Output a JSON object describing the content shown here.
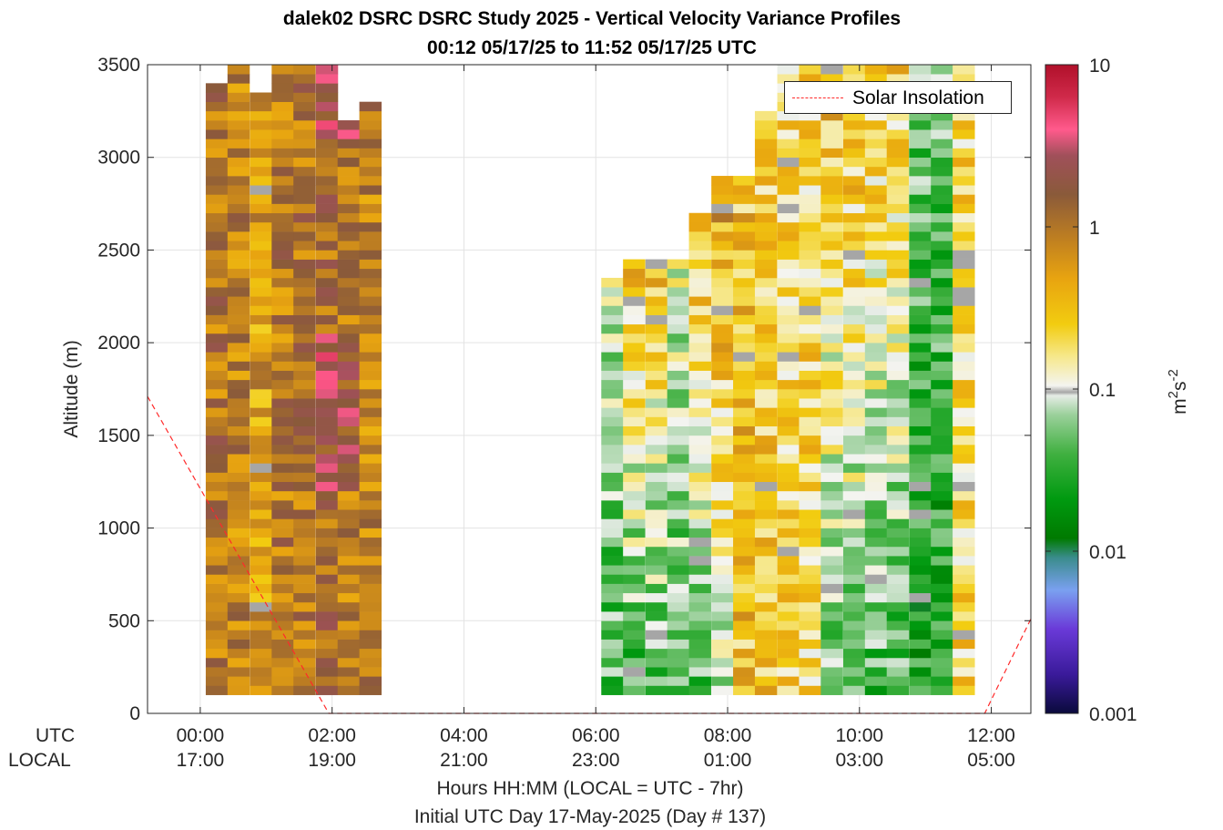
{
  "title_line1": "dalek02 DSRC DSRC Study 2025 - Vertical Velocity Variance Profiles",
  "title_line2": "00:12 05/17/25 to 11:52 05/17/25  UTC",
  "legend_label": "Solar Insolation",
  "bottom_row_labels": {
    "utc": "UTC",
    "local": "LOCAL"
  },
  "x_ticks_utc": [
    "00:00",
    "02:00",
    "04:00",
    "06:00",
    "08:00",
    "10:00",
    "12:00"
  ],
  "x_ticks_local": [
    "17:00",
    "19:00",
    "21:00",
    "23:00",
    "01:00",
    "03:00",
    "05:00"
  ],
  "xlabel_line1": "Hours HH:MM  (LOCAL = UTC - 7hr)",
  "xlabel_line2": "Initial UTC Day 17-May-2025 (Day # 137)",
  "colorbar": {
    "label": "m2s-2",
    "ticks": [
      "10",
      "1",
      "0.1",
      "0.01",
      "0.001"
    ],
    "scale": "log"
  },
  "chart_data": {
    "type": "heatmap",
    "title": "dalek02 DSRC DSRC Study 2025 - Vertical Velocity Variance Profiles",
    "subtitle": "00:12 05/17/25 to 11:52 05/17/25  UTC",
    "xlabel": "Hours HH:MM  (LOCAL = UTC - 7hr)",
    "ylabel": "Altitude (m)",
    "xlim_hours_utc": [
      -0.8,
      12.6
    ],
    "ylim": [
      0,
      3500
    ],
    "y_ticks": [
      0,
      500,
      1000,
      1500,
      2000,
      2500,
      3000,
      3500
    ],
    "color_scale": "log",
    "clim": [
      0.001,
      10
    ],
    "grid": true,
    "legend_placement": "top-right",
    "cell_height_m": 50,
    "time_step_minutes": 20,
    "columns": [
      {
        "t_hours": 0.25,
        "alt_min": 100,
        "alt_max": 3400,
        "regime": "brown",
        "typical_variance": 1.0
      },
      {
        "t_hours": 0.58,
        "alt_min": 100,
        "alt_max": 3500,
        "regime": "brown",
        "typical_variance": 0.8
      },
      {
        "t_hours": 0.92,
        "alt_min": 100,
        "alt_max": 3350,
        "regime": "yellow",
        "typical_variance": 0.5
      },
      {
        "t_hours": 1.25,
        "alt_min": 100,
        "alt_max": 3500,
        "regime": "brown",
        "typical_variance": 0.9
      },
      {
        "t_hours": 1.58,
        "alt_min": 100,
        "alt_max": 3500,
        "regime": "brown",
        "typical_variance": 1.0
      },
      {
        "t_hours": 1.92,
        "alt_min": 100,
        "alt_max": 3500,
        "regime": "pink",
        "typical_variance": 2.5
      },
      {
        "t_hours": 2.25,
        "alt_min": 100,
        "alt_max": 3200,
        "regime": "pink",
        "typical_variance": 2.0
      },
      {
        "t_hours": 2.58,
        "alt_min": 100,
        "alt_max": 3300,
        "regime": "brown",
        "typical_variance": 0.8
      },
      {
        "t_hours": 6.25,
        "alt_min": 100,
        "alt_max": 2350,
        "regime": "green",
        "typical_variance": 0.05
      },
      {
        "t_hours": 6.58,
        "alt_min": 100,
        "alt_max": 2450,
        "regime": "mixed",
        "typical_variance": 0.08
      },
      {
        "t_hours": 6.92,
        "alt_min": 100,
        "alt_max": 2450,
        "regime": "mixed",
        "typical_variance": 0.08
      },
      {
        "t_hours": 7.25,
        "alt_min": 100,
        "alt_max": 2450,
        "regime": "green",
        "typical_variance": 0.06
      },
      {
        "t_hours": 7.58,
        "alt_min": 100,
        "alt_max": 2700,
        "regime": "mixed",
        "typical_variance": 0.1
      },
      {
        "t_hours": 7.92,
        "alt_min": 100,
        "alt_max": 2900,
        "regime": "mixed",
        "typical_variance": 0.15
      },
      {
        "t_hours": 8.25,
        "alt_min": 100,
        "alt_max": 2900,
        "regime": "yellow",
        "typical_variance": 0.3
      },
      {
        "t_hours": 8.58,
        "alt_min": 100,
        "alt_max": 3250,
        "regime": "yellow",
        "typical_variance": 0.25
      },
      {
        "t_hours": 8.92,
        "alt_min": 100,
        "alt_max": 3500,
        "regime": "yellow",
        "typical_variance": 0.2
      },
      {
        "t_hours": 9.25,
        "alt_min": 100,
        "alt_max": 3500,
        "regime": "yellow",
        "typical_variance": 0.2
      },
      {
        "t_hours": 9.58,
        "alt_min": 100,
        "alt_max": 3500,
        "regime": "mixed",
        "typical_variance": 0.1
      },
      {
        "t_hours": 9.92,
        "alt_min": 100,
        "alt_max": 3500,
        "regime": "mixed",
        "typical_variance": 0.1
      },
      {
        "t_hours": 10.25,
        "alt_min": 100,
        "alt_max": 3500,
        "regime": "mixed",
        "typical_variance": 0.08
      },
      {
        "t_hours": 10.58,
        "alt_min": 100,
        "alt_max": 3500,
        "regime": "mixed",
        "typical_variance": 0.08
      },
      {
        "t_hours": 10.92,
        "alt_min": 100,
        "alt_max": 3500,
        "regime": "green",
        "typical_variance": 0.03
      },
      {
        "t_hours": 11.25,
        "alt_min": 100,
        "alt_max": 3500,
        "regime": "green",
        "typical_variance": 0.03
      },
      {
        "t_hours": 11.58,
        "alt_min": 100,
        "alt_max": 3500,
        "regime": "yellow",
        "typical_variance": 0.2
      }
    ],
    "solar_insolation_line": {
      "name": "Solar Insolation",
      "style": "red dashed",
      "points": [
        {
          "t_hours": -0.8,
          "altitude": 1710
        },
        {
          "t_hours": 1.95,
          "altitude": 0
        },
        {
          "t_hours": 11.9,
          "altitude": 0
        },
        {
          "t_hours": 12.6,
          "altitude": 510
        }
      ]
    }
  }
}
